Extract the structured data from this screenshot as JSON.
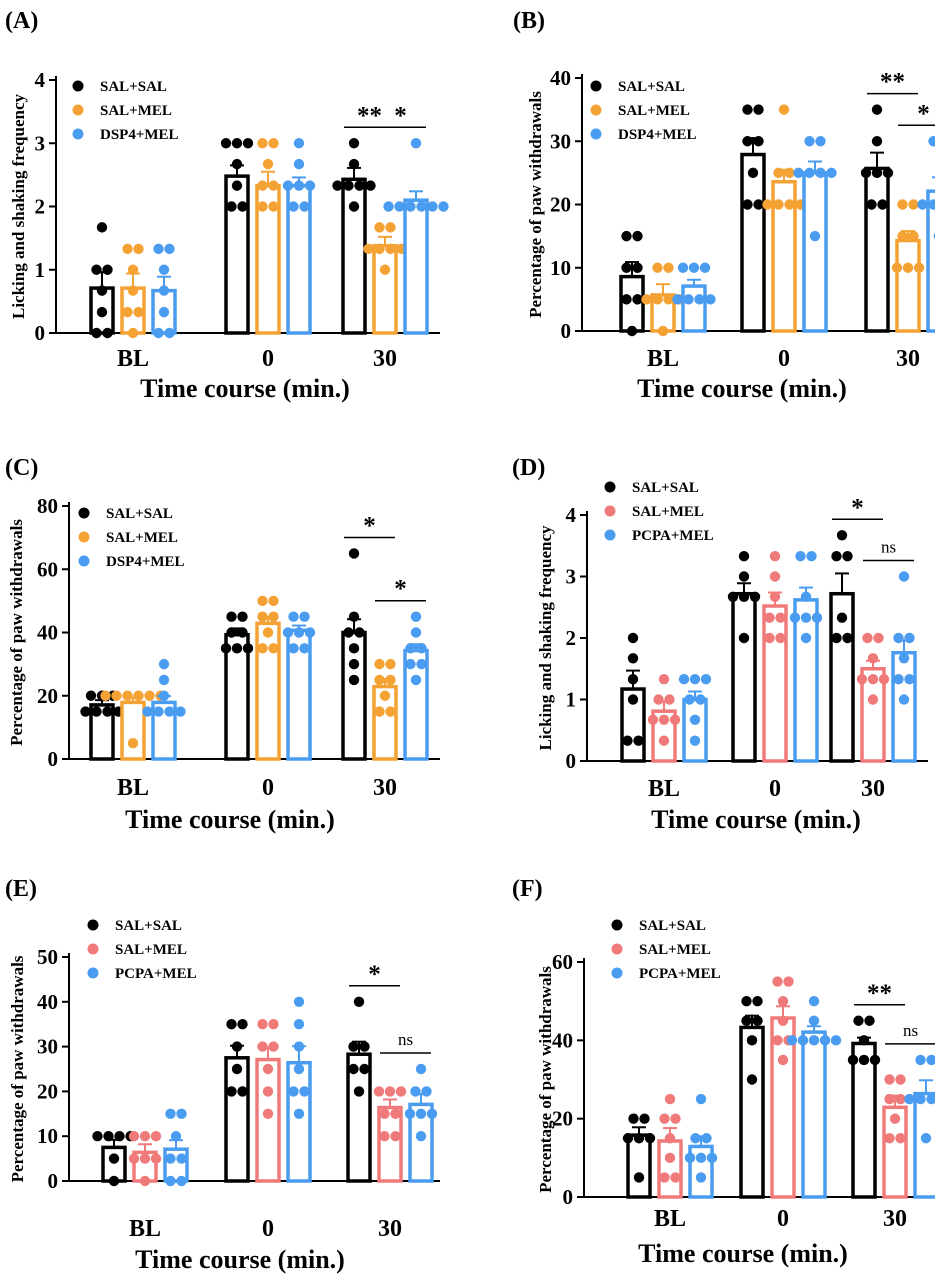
{
  "colors": {
    "black": "#000000",
    "orange": "#F5A234",
    "blue": "#4A9CF0",
    "pink": "#F07A7A"
  },
  "chart_data": [
    {
      "panel": "(A)",
      "type": "bar",
      "ylabel": "Licking and shaking frequency",
      "xlabel": "Time course (min.)",
      "categories": [
        "BL",
        "0",
        "30"
      ],
      "ylim": [
        0,
        4
      ],
      "yticks": [
        0,
        1,
        2,
        3,
        4
      ],
      "series": [
        {
          "name": "SAL+SAL",
          "color": "#000000",
          "values": [
            0.71,
            2.48,
            2.43
          ],
          "sem": [
            0.25,
            0.17,
            0.18
          ],
          "points": [
            [
              1.67,
              1,
              1,
              0.67,
              0.33,
              0,
              0
            ],
            [
              3,
              3,
              2.67,
              2.33,
              2,
              2,
              3
            ],
            [
              3,
              2.67,
              2.33,
              2.33,
              2,
              2.33,
              2.33
            ]
          ]
        },
        {
          "name": "SAL+MEL",
          "color": "#F5A234",
          "values": [
            0.71,
            2.33,
            1.38
          ],
          "sem": [
            0.23,
            0.22,
            0.14
          ],
          "points": [
            [
              1.33,
              1.33,
              1,
              0.67,
              0.33,
              0,
              0.33
            ],
            [
              3,
              3,
              2.67,
              2.33,
              2,
              2,
              2.33
            ],
            [
              1.67,
              1.67,
              1.33,
              1.33,
              1,
              1.33,
              1.33
            ]
          ]
        },
        {
          "name": "DSP4+MEL",
          "color": "#4A9CF0",
          "values": [
            0.67,
            2.33,
            2.1
          ],
          "sem": [
            0.22,
            0.13,
            0.14
          ],
          "points": [
            [
              1.33,
              1.33,
              1,
              0.67,
              0.33,
              0,
              0
            ],
            [
              3,
              2.67,
              2.33,
              2.33,
              2,
              2,
              2.33
            ],
            [
              3,
              2,
              2,
              2,
              2,
              2,
              2
            ]
          ]
        }
      ],
      "significance": [
        {
          "label": "**",
          "from_series": 0,
          "to_series": 1,
          "category": 2
        },
        {
          "label": "*",
          "from_series": 1,
          "to_series": 2,
          "category": 2
        }
      ]
    },
    {
      "panel": "(B)",
      "type": "bar",
      "ylabel": "Percentage of paw withdrawals",
      "xlabel": "Time course (min.)",
      "categories": [
        "BL",
        "0",
        "30"
      ],
      "ylim": [
        0,
        40
      ],
      "yticks": [
        0,
        10,
        20,
        30,
        40
      ],
      "series": [
        {
          "name": "SAL+SAL",
          "color": "#000000",
          "values": [
            8.6,
            27.9,
            25.7
          ],
          "sem": [
            2.3,
            2.6,
            2.5
          ],
          "points": [
            [
              15,
              15,
              10,
              10,
              5,
              5,
              0
            ],
            [
              35,
              35,
              30,
              30,
              25,
              20,
              20
            ],
            [
              35,
              30,
              25,
              25,
              20,
              25,
              20
            ]
          ]
        },
        {
          "name": "SAL+MEL",
          "color": "#F5A234",
          "values": [
            5.7,
            23.6,
            14.3
          ],
          "sem": [
            1.7,
            1.9,
            1.5
          ],
          "points": [
            [
              10,
              10,
              5,
              5,
              5,
              0,
              5
            ],
            [
              35,
              25,
              25,
              20,
              20,
              20,
              20
            ],
            [
              20,
              20,
              15,
              15,
              10,
              10,
              10
            ]
          ]
        },
        {
          "name": "DSP4+MEL",
          "color": "#4A9CF0",
          "values": [
            7.1,
            25.0,
            22.1
          ],
          "sem": [
            1.0,
            1.8,
            2.2
          ],
          "points": [
            [
              10,
              10,
              5,
              5,
              5,
              10,
              5
            ],
            [
              30,
              30,
              25,
              25,
              25,
              25,
              15
            ],
            [
              30,
              30,
              20,
              20,
              20,
              20,
              15
            ]
          ]
        }
      ],
      "significance": [
        {
          "label": "**",
          "from_series": 0,
          "to_series": 1,
          "category": 2
        },
        {
          "label": "*",
          "from_series": 1,
          "to_series": 2,
          "category": 2
        }
      ]
    },
    {
      "panel": "(C)",
      "type": "bar",
      "ylabel": "Percentage of paw withdrawals",
      "xlabel": "Time course (min.)",
      "categories": [
        "BL",
        "0",
        "30"
      ],
      "ylim": [
        0,
        80
      ],
      "yticks": [
        0,
        20,
        40,
        60,
        80
      ],
      "series": [
        {
          "name": "SAL+SAL",
          "color": "#000000",
          "values": [
            17.1,
            39.3,
            40.0
          ],
          "sem": [
            1.5,
            2.0,
            4.2
          ],
          "points": [
            [
              20,
              20,
              20,
              15,
              15,
              15,
              15
            ],
            [
              45,
              45,
              40,
              40,
              35,
              35,
              35
            ],
            [
              65,
              45,
              40,
              40,
              35,
              25,
              30
            ]
          ]
        },
        {
          "name": "SAL+MEL",
          "color": "#F5A234",
          "values": [
            17.9,
            42.9,
            22.9
          ],
          "sem": [
            1.5,
            2.1,
            2.4
          ],
          "points": [
            [
              20,
              20,
              20,
              20,
              20,
              20,
              5
            ],
            [
              50,
              50,
              45,
              45,
              40,
              35,
              35
            ],
            [
              30,
              30,
              25,
              25,
              20,
              15,
              15
            ]
          ]
        },
        {
          "name": "DSP4+MEL",
          "color": "#4A9CF0",
          "values": [
            17.9,
            40.7,
            34.3
          ],
          "sem": [
            2.0,
            1.5,
            2.0
          ],
          "points": [
            [
              30,
              25,
              20,
              15,
              15,
              15,
              15
            ],
            [
              45,
              45,
              40,
              40,
              40,
              35,
              35
            ],
            [
              45,
              40,
              35,
              35,
              30,
              30,
              25
            ]
          ]
        }
      ],
      "significance": [
        {
          "label": "*",
          "from_series": 0,
          "to_series": 1,
          "category": 2
        },
        {
          "label": "*",
          "from_series": 1,
          "to_series": 2,
          "category": 2
        }
      ]
    },
    {
      "panel": "(D)",
      "type": "bar",
      "ylabel": "Licking and shaking frequency",
      "xlabel": "Time course (min.)",
      "categories": [
        "BL",
        "0",
        "30"
      ],
      "ylim": [
        0,
        4
      ],
      "yticks": [
        0,
        1,
        2,
        3,
        4
      ],
      "series": [
        {
          "name": "SAL+SAL",
          "color": "#000000",
          "values": [
            1.17,
            2.72,
            2.72
          ],
          "sem": [
            0.3,
            0.17,
            0.33
          ],
          "points": [
            [
              2,
              1.67,
              1.33,
              1,
              0.33,
              0.33
            ],
            [
              3.33,
              3,
              2.67,
              2.67,
              2.67,
              2
            ],
            [
              3.67,
              3.33,
              3.33,
              2.33,
              2,
              2
            ]
          ]
        },
        {
          "name": "SAL+MEL",
          "color": "#F07A7A",
          "values": [
            0.81,
            2.52,
            1.5
          ],
          "sem": [
            0.15,
            0.22,
            0.13
          ],
          "points": [
            [
              1.33,
              1,
              1,
              0.67,
              0.67,
              0.33,
              0.67
            ],
            [
              3.33,
              3,
              2.67,
              2.33,
              2,
              2,
              2.33
            ],
            [
              2,
              2,
              1.67,
              1.33,
              1.33,
              1,
              1.33
            ]
          ]
        },
        {
          "name": "PCPA+MEL",
          "color": "#4A9CF0",
          "values": [
            1.0,
            2.62,
            1.76
          ],
          "sem": [
            0.13,
            0.2,
            0.2
          ],
          "points": [
            [
              1.33,
              1.33,
              1.33,
              1,
              1,
              0.67,
              0.33
            ],
            [
              3.33,
              3.33,
              2.67,
              2.33,
              2.33,
              2,
              2.33
            ],
            [
              3,
              2,
              2,
              1.67,
              1.33,
              1.33,
              1
            ]
          ]
        }
      ],
      "significance": [
        {
          "label": "*",
          "from_series": 0,
          "to_series": 1,
          "category": 2
        },
        {
          "label": "ns",
          "from_series": 1,
          "to_series": 2,
          "category": 2
        }
      ]
    },
    {
      "panel": "(E)",
      "type": "bar",
      "ylabel": "Percentage of paw withdrawals",
      "xlabel": "Time course (min.)",
      "categories": [
        "BL",
        "0",
        "30"
      ],
      "ylim": [
        0,
        50
      ],
      "yticks": [
        0,
        10,
        20,
        30,
        40,
        50
      ],
      "series": [
        {
          "name": "SAL+SAL",
          "color": "#000000",
          "values": [
            7.5,
            27.5,
            28.3
          ],
          "sem": [
            1.7,
            2.7,
            2.8
          ],
          "points": [
            [
              10,
              10,
              10,
              5,
              0,
              10
            ],
            [
              35,
              35,
              30,
              25,
              20,
              20
            ],
            [
              40,
              30,
              30,
              25,
              20,
              25
            ]
          ]
        },
        {
          "name": "SAL+MEL",
          "color": "#F07A7A",
          "values": [
            6.4,
            27.1,
            16.4
          ],
          "sem": [
            1.8,
            2.7,
            1.8
          ],
          "points": [
            [
              10,
              10,
              10,
              5,
              5,
              0,
              5
            ],
            [
              35,
              35,
              30,
              25,
              20,
              15,
              30
            ],
            [
              20,
              20,
              15,
              15,
              10,
              10,
              20
            ]
          ]
        },
        {
          "name": "PCPA+MEL",
          "color": "#4A9CF0",
          "values": [
            7.1,
            26.4,
            17.1
          ],
          "sem": [
            2.0,
            3.7,
            2.3
          ],
          "points": [
            [
              15,
              15,
              10,
              5,
              5,
              0,
              0
            ],
            [
              40,
              35,
              30,
              25,
              20,
              20,
              15
            ],
            [
              25,
              20,
              20,
              15,
              15,
              10,
              15
            ]
          ]
        }
      ],
      "significance": [
        {
          "label": "*",
          "from_series": 0,
          "to_series": 1,
          "category": 2
        },
        {
          "label": "ns",
          "from_series": 1,
          "to_series": 2,
          "category": 2
        }
      ]
    },
    {
      "panel": "(F)",
      "type": "bar",
      "ylabel": "Percentage of paw withdrawals",
      "xlabel": "Time course (min.)",
      "categories": [
        "BL",
        "0",
        "30"
      ],
      "ylim": [
        0,
        60
      ],
      "yticks": [
        0,
        20,
        40,
        60
      ],
      "series": [
        {
          "name": "SAL+SAL",
          "color": "#000000",
          "values": [
            15.8,
            43.3,
            39.2
          ],
          "sem": [
            2.0,
            3.0,
            1.5
          ],
          "points": [
            [
              20,
              20,
              15,
              15,
              15,
              5
            ],
            [
              50,
              50,
              45,
              45,
              40,
              30
            ],
            [
              45,
              45,
              40,
              35,
              35,
              35
            ]
          ]
        },
        {
          "name": "SAL+MEL",
          "color": "#F07A7A",
          "values": [
            14.3,
            45.7,
            22.9
          ],
          "sem": [
            3.3,
            3.0,
            3.0
          ],
          "points": [
            [
              25,
              20,
              20,
              15,
              10,
              5,
              5
            ],
            [
              55,
              55,
              50,
              45,
              40,
              40,
              35
            ],
            [
              30,
              30,
              25,
              25,
              20,
              15,
              15
            ]
          ]
        },
        {
          "name": "PCPA+MEL",
          "color": "#4A9CF0",
          "values": [
            12.9,
            42.1,
            26.4
          ],
          "sem": [
            2.6,
            1.5,
            3.4
          ],
          "points": [
            [
              25,
              15,
              15,
              10,
              10,
              10,
              5
            ],
            [
              50,
              45,
              40,
              40,
              40,
              40,
              40
            ],
            [
              35,
              35,
              25,
              25,
              25,
              25,
              15
            ]
          ]
        }
      ],
      "significance": [
        {
          "label": "**",
          "from_series": 0,
          "to_series": 1,
          "category": 2
        },
        {
          "label": "ns",
          "from_series": 1,
          "to_series": 2,
          "category": 2
        }
      ]
    }
  ]
}
